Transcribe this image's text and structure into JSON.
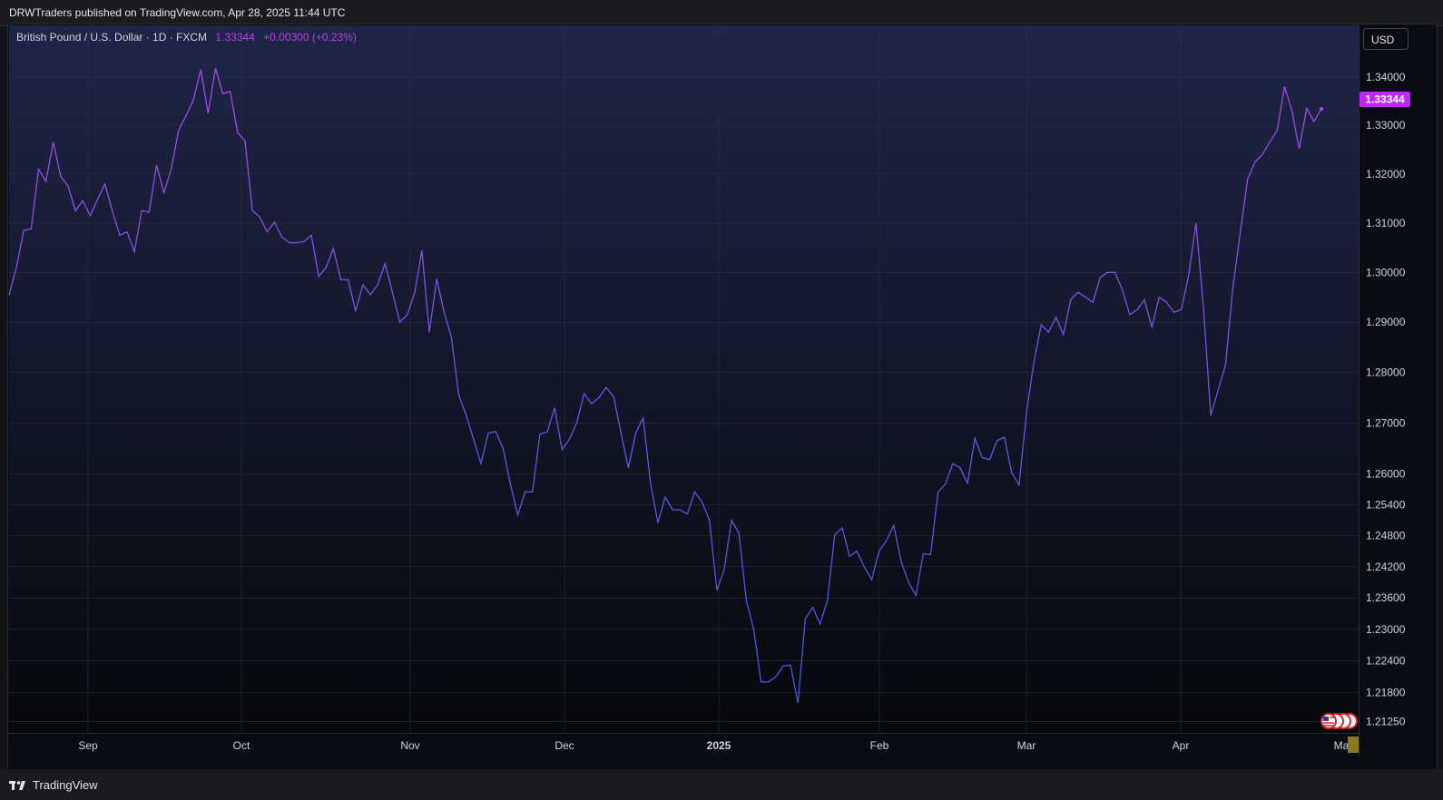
{
  "header": {
    "publish_text": "DRWTraders published on TradingView.com, Apr 28, 2025 11:44 UTC"
  },
  "legend": {
    "symbol": "British Pound / U.S. Dollar · 1D · FXCM",
    "last_price": "1.33344",
    "change": "+0.00300 (+0.23%)"
  },
  "currency_button": "USD",
  "price_label": "1.33344",
  "footer": {
    "brand": "TradingView"
  },
  "colors": {
    "line_start": "#a34ce8",
    "line_end": "#3d5be0",
    "price_label_bg": "#c026f5",
    "background_top": "#1f2547",
    "background_bottom": "#07080b"
  },
  "chart_data": {
    "type": "line",
    "title": "British Pound / U.S. Dollar · 1D · FXCM",
    "x_tick_labels": [
      "Sep",
      "Oct",
      "Nov",
      "Dec",
      "2025",
      "Feb",
      "Mar",
      "Apr",
      "May"
    ],
    "y_tick_labels": [
      "1.34000",
      "1.33000",
      "1.32000",
      "1.31000",
      "1.30000",
      "1.29000",
      "1.28000",
      "1.27000",
      "1.26000",
      "1.25400",
      "1.24800",
      "1.24200",
      "1.23600",
      "1.23000",
      "1.22400",
      "1.21800",
      "1.21250"
    ],
    "scale": "log",
    "ylim": [
      1.2104,
      1.3447
    ],
    "grid": true,
    "series": [
      {
        "values": [
          1.2955,
          1.301,
          1.3085,
          1.3088,
          1.321,
          1.3185,
          1.3265,
          1.3195,
          1.3175,
          1.3125,
          1.3145,
          1.3115,
          1.3148,
          1.318,
          1.3125,
          1.3075,
          1.3082,
          1.3042,
          1.3125,
          1.3122,
          1.3218,
          1.3162,
          1.321,
          1.329,
          1.332,
          1.3352,
          1.3415,
          1.3325,
          1.3418,
          1.3365,
          1.337,
          1.3285,
          1.3268,
          1.3125,
          1.3112,
          1.3082,
          1.3102,
          1.3072,
          1.306,
          1.306,
          1.3062,
          1.3075,
          1.2992,
          1.301,
          1.3048,
          1.2985,
          1.2985,
          1.2922,
          1.2975,
          1.2955,
          1.2975,
          1.3018,
          1.296,
          1.29,
          1.2915,
          1.2958,
          1.3045,
          1.288,
          1.2987,
          1.292,
          1.287,
          1.2755,
          1.2715,
          1.2668,
          1.262,
          1.268,
          1.2683,
          1.265,
          1.258,
          1.252,
          1.2565,
          1.2565,
          1.2678,
          1.2682,
          1.273,
          1.2648,
          1.2668,
          1.27,
          1.2758,
          1.2738,
          1.275,
          1.277,
          1.2752,
          1.268,
          1.2612,
          1.268,
          1.271,
          1.2582,
          1.2505,
          1.2555,
          1.253,
          1.253,
          1.2522,
          1.2565,
          1.2545,
          1.251,
          1.2375,
          1.2415,
          1.251,
          1.2485,
          1.2355,
          1.23,
          1.22,
          1.22,
          1.221,
          1.223,
          1.2232,
          1.216,
          1.232,
          1.2342,
          1.231,
          1.2355,
          1.2482,
          1.2495,
          1.244,
          1.245,
          1.242,
          1.2395,
          1.245,
          1.247,
          1.25,
          1.243,
          1.239,
          1.2365,
          1.2445,
          1.2443,
          1.2565,
          1.258,
          1.262,
          1.2612,
          1.2582,
          1.267,
          1.2632,
          1.2628,
          1.2665,
          1.2672,
          1.2602,
          1.2578,
          1.272,
          1.282,
          1.2895,
          1.288,
          1.291,
          1.2875,
          1.2945,
          1.296,
          1.295,
          1.294,
          1.299,
          1.3,
          1.3,
          1.2965,
          1.2915,
          1.2925,
          1.2945,
          1.289,
          1.295,
          1.294,
          1.292,
          1.2925,
          1.2995,
          1.31,
          1.293,
          1.2715,
          1.2765,
          1.2815,
          1.297,
          1.308,
          1.319,
          1.3225,
          1.324,
          1.3265,
          1.329,
          1.338,
          1.333,
          1.3252,
          1.3335,
          1.3308,
          1.3334
        ]
      }
    ]
  }
}
